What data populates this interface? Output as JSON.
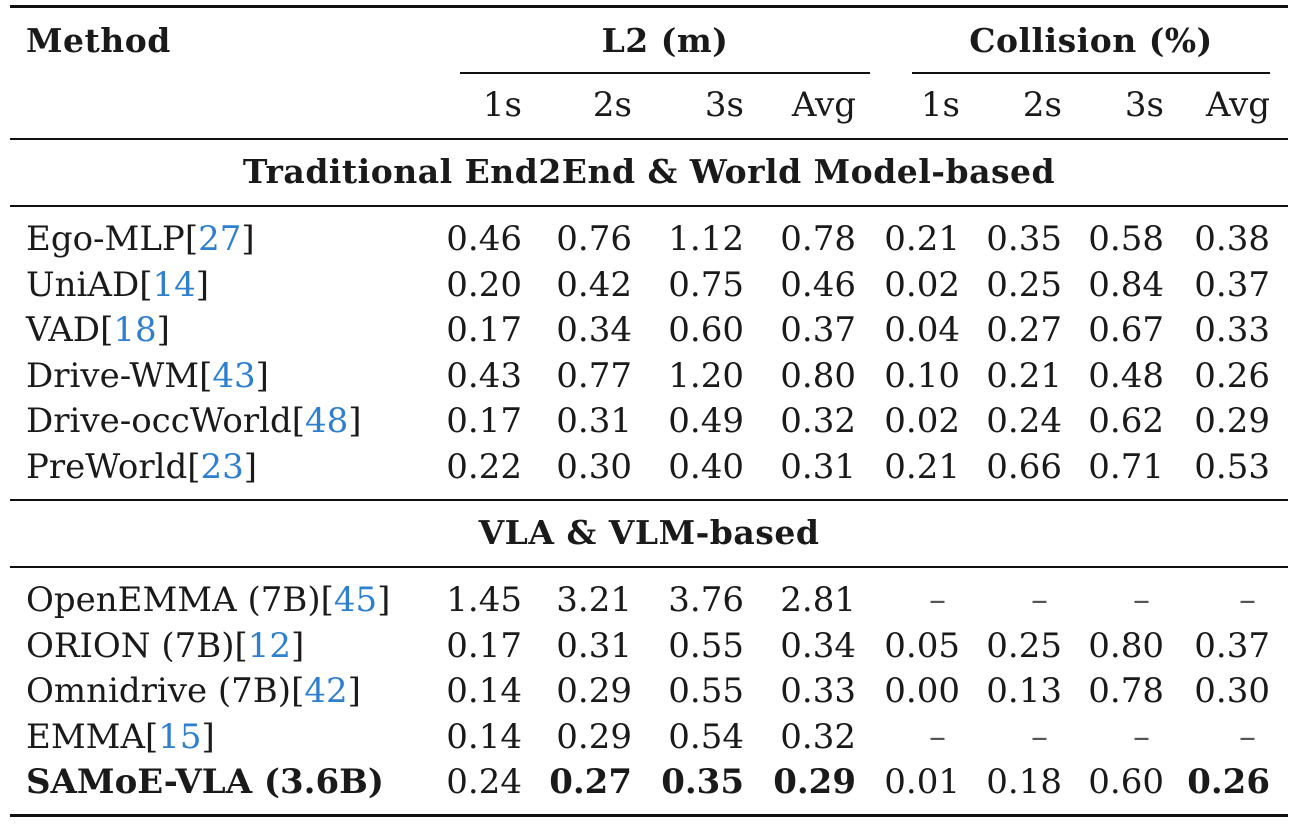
{
  "header": {
    "method": "Method",
    "l2_group": "L2 (m)",
    "collision_group": "Collision (%)",
    "horizons": [
      "1s",
      "2s",
      "3s",
      "Avg",
      "1s",
      "2s",
      "3s",
      "Avg"
    ]
  },
  "sections": [
    {
      "title": "Traditional End2End & World Model-based",
      "rows": [
        {
          "name": "Ego-MLP",
          "size": "",
          "cite": "27",
          "values": [
            "0.46",
            "0.76",
            "1.12",
            "0.78",
            "0.21",
            "0.35",
            "0.58",
            "0.38"
          ],
          "bold": [
            false,
            false,
            false,
            false,
            false,
            false,
            false,
            false
          ],
          "bold_name": false
        },
        {
          "name": "UniAD",
          "size": "",
          "cite": "14",
          "values": [
            "0.20",
            "0.42",
            "0.75",
            "0.46",
            "0.02",
            "0.25",
            "0.84",
            "0.37"
          ],
          "bold": [
            false,
            false,
            false,
            false,
            false,
            false,
            false,
            false
          ],
          "bold_name": false
        },
        {
          "name": "VAD",
          "size": "",
          "cite": "18",
          "values": [
            "0.17",
            "0.34",
            "0.60",
            "0.37",
            "0.04",
            "0.27",
            "0.67",
            "0.33"
          ],
          "bold": [
            false,
            false,
            false,
            false,
            false,
            false,
            false,
            false
          ],
          "bold_name": false
        },
        {
          "name": "Drive-WM",
          "size": "",
          "cite": "43",
          "values": [
            "0.43",
            "0.77",
            "1.20",
            "0.80",
            "0.10",
            "0.21",
            "0.48",
            "0.26"
          ],
          "bold": [
            false,
            false,
            false,
            false,
            false,
            false,
            false,
            false
          ],
          "bold_name": false
        },
        {
          "name": "Drive-occWorld",
          "size": "",
          "cite": "48",
          "values": [
            "0.17",
            "0.31",
            "0.49",
            "0.32",
            "0.02",
            "0.24",
            "0.62",
            "0.29"
          ],
          "bold": [
            false,
            false,
            false,
            false,
            false,
            false,
            false,
            false
          ],
          "bold_name": false
        },
        {
          "name": "PreWorld",
          "size": "",
          "cite": "23",
          "values": [
            "0.22",
            "0.30",
            "0.40",
            "0.31",
            "0.21",
            "0.66",
            "0.71",
            "0.53"
          ],
          "bold": [
            false,
            false,
            false,
            false,
            false,
            false,
            false,
            false
          ],
          "bold_name": false
        }
      ]
    },
    {
      "title": "VLA & VLM-based",
      "rows": [
        {
          "name": "OpenEMMA (7B)",
          "size": "",
          "cite": "45",
          "values": [
            "1.45",
            "3.21",
            "3.76",
            "2.81",
            "–",
            "–",
            "–",
            "–"
          ],
          "bold": [
            false,
            false,
            false,
            false,
            false,
            false,
            false,
            false
          ],
          "bold_name": false
        },
        {
          "name": "ORION (7B)",
          "size": "",
          "cite": "12",
          "values": [
            "0.17",
            "0.31",
            "0.55",
            "0.34",
            "0.05",
            "0.25",
            "0.80",
            "0.37"
          ],
          "bold": [
            false,
            false,
            false,
            false,
            false,
            false,
            false,
            false
          ],
          "bold_name": false
        },
        {
          "name": "Omnidrive (7B)",
          "size": "",
          "cite": "42",
          "values": [
            "0.14",
            "0.29",
            "0.55",
            "0.33",
            "0.00",
            "0.13",
            "0.78",
            "0.30"
          ],
          "bold": [
            false,
            false,
            false,
            false,
            false,
            false,
            false,
            false
          ],
          "bold_name": false
        },
        {
          "name": "EMMA",
          "size": "",
          "cite": "15",
          "values": [
            "0.14",
            "0.29",
            "0.54",
            "0.32",
            "–",
            "–",
            "–",
            "–"
          ],
          "bold": [
            false,
            false,
            false,
            false,
            false,
            false,
            false,
            false
          ],
          "bold_name": false
        },
        {
          "name": "SAMoE-VLA (3.6B)",
          "size": "",
          "cite": "",
          "values": [
            "0.24",
            "0.27",
            "0.35",
            "0.29",
            "0.01",
            "0.18",
            "0.60",
            "0.26"
          ],
          "bold": [
            false,
            true,
            true,
            true,
            false,
            false,
            false,
            true
          ],
          "bold_name": true
        }
      ]
    }
  ]
}
